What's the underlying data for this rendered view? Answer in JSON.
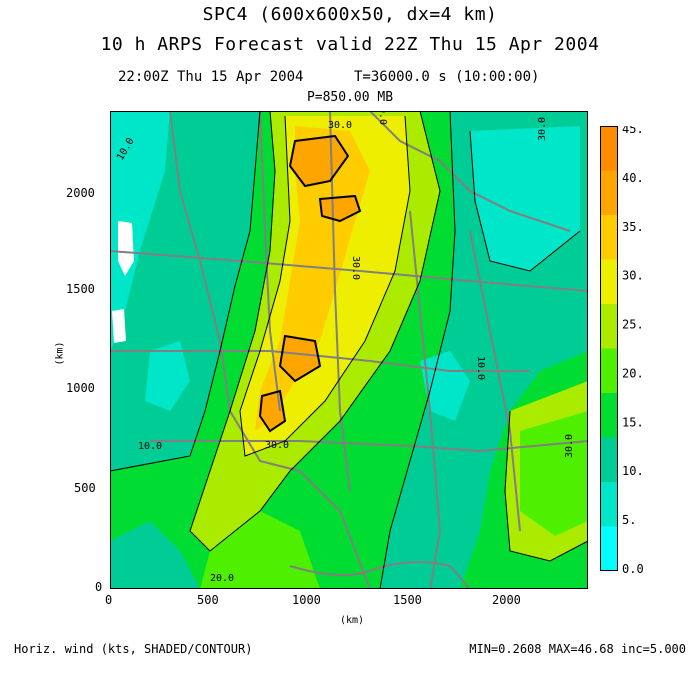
{
  "header": {
    "title_line1": "SPC4 (600x600x50, dx=4 km)",
    "title_line2": "10 h ARPS Forecast valid 22Z Thu 15 Apr 2004",
    "time_line": "22:00Z Thu 15 Apr 2004      T=36000.0 s (10:00:00)",
    "pressure_line": "P=850.00 MB"
  },
  "axes": {
    "x_unit": "(km)",
    "y_unit": "(km)",
    "x_ticks": [
      "0",
      "500",
      "1000",
      "1500",
      "2000"
    ],
    "y_ticks": [
      "0",
      "500",
      "1000",
      "1500",
      "2000"
    ],
    "x_range_km": [
      0,
      2400
    ],
    "y_range_km": [
      0,
      2400
    ]
  },
  "colorbar": {
    "labels": [
      "45.",
      "40.",
      "35.",
      "30.",
      "25.",
      "20.",
      "15.",
      "10.",
      "5.",
      "0.0"
    ],
    "levels": [
      0,
      5,
      10,
      15,
      20,
      25,
      30,
      35,
      40,
      45
    ],
    "colors": [
      "#00ffff",
      "#00e6c8",
      "#00cc96",
      "#00dc32",
      "#4ef000",
      "#aaeb00",
      "#eeee00",
      "#ffcc00",
      "#ffa500",
      "#ff8c00"
    ]
  },
  "contour_labels": [
    "30.0",
    "30.0",
    "30.0",
    "30.0",
    "10.0",
    "10.0",
    "10.0",
    "30.0",
    "20.0",
    "30.0"
  ],
  "footer": {
    "left": "Horiz. wind (kts, SHADED/CONTOUR)",
    "right": "MIN=0.2608 MAX=46.68 inc=5.000"
  }
}
